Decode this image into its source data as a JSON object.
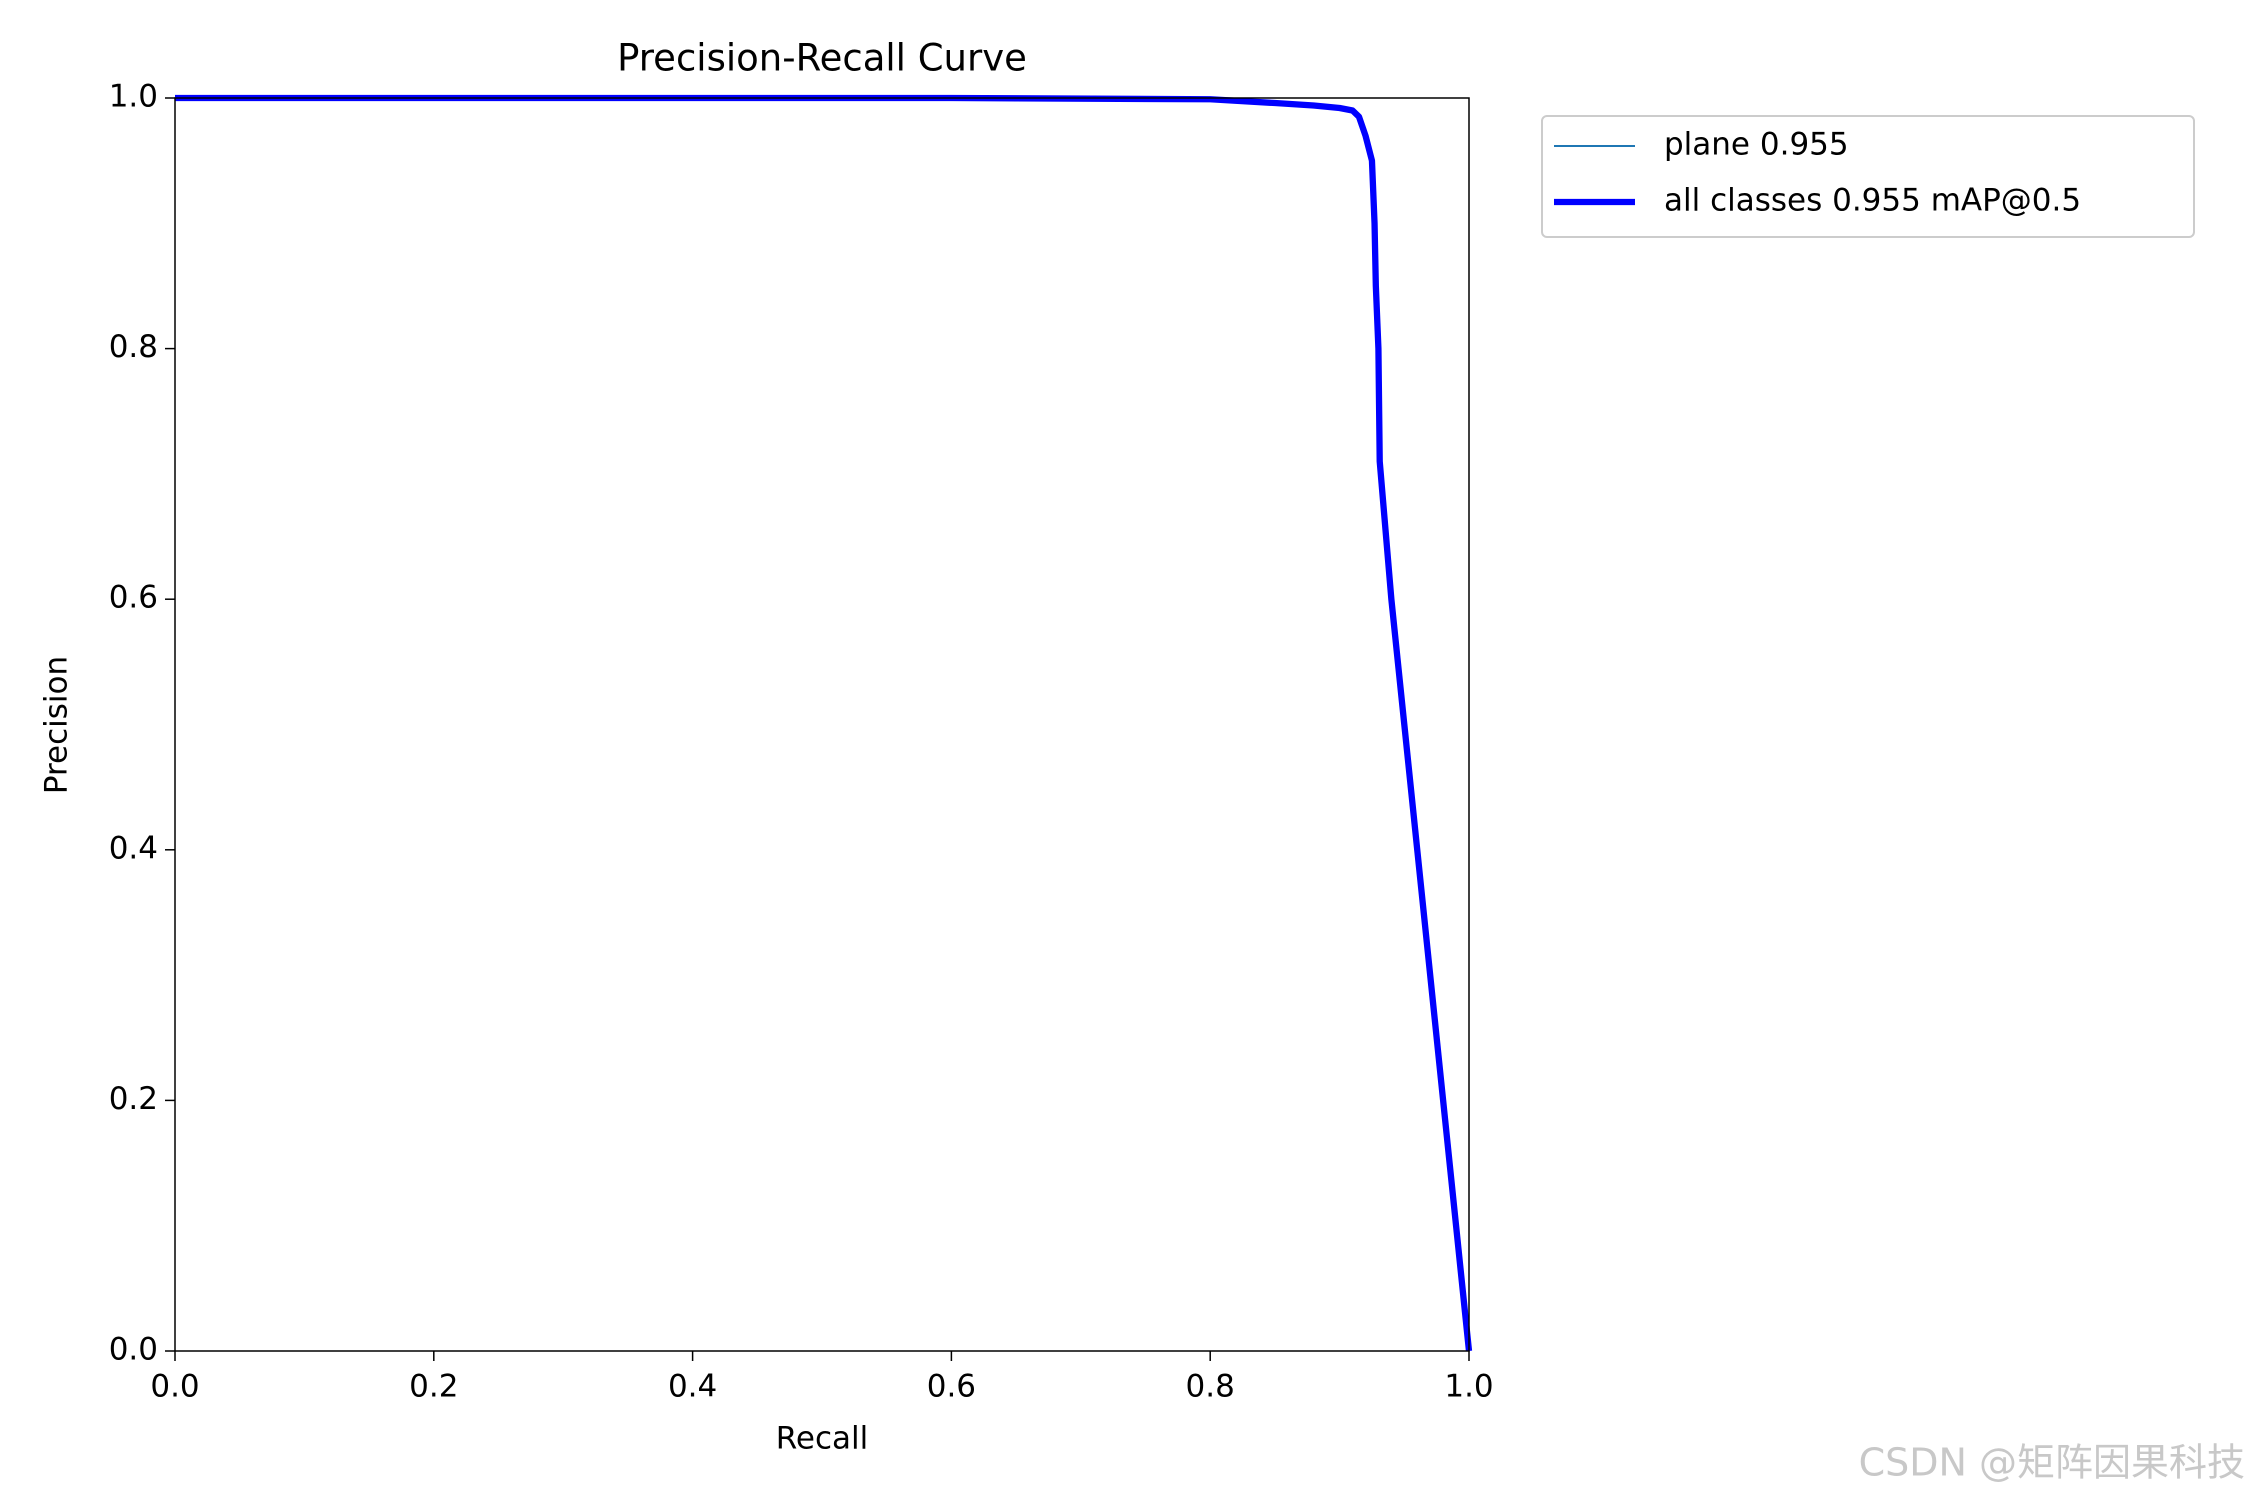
{
  "chart_data": {
    "type": "line",
    "title": "Precision-Recall Curve",
    "x_label": "Recall",
    "y_label": "Precision",
    "x": [
      0,
      0.6,
      0.8,
      0.85,
      0.88,
      0.9,
      0.91,
      0.915,
      0.92,
      0.925,
      0.927,
      0.928,
      0.93,
      0.931,
      0.94,
      0.95,
      0.96,
      0.97,
      0.98,
      0.99,
      0.997,
      1.0
    ],
    "series": [
      {
        "name": "plane 0.955",
        "color": "#1f77b4",
        "width": 1,
        "values": [
          1,
          1,
          0.999,
          0.996,
          0.994,
          0.992,
          0.99,
          0.985,
          0.97,
          0.95,
          0.9,
          0.85,
          0.8,
          0.71,
          0.6,
          0.5,
          0.4,
          0.3,
          0.2,
          0.1,
          0.03,
          0.0
        ]
      },
      {
        "name": "all classes 0.955 mAP@0.5",
        "color": "#0000ff",
        "width": 3,
        "values": [
          1,
          1,
          0.999,
          0.996,
          0.994,
          0.992,
          0.99,
          0.985,
          0.97,
          0.95,
          0.9,
          0.85,
          0.8,
          0.71,
          0.6,
          0.5,
          0.4,
          0.3,
          0.2,
          0.1,
          0.03,
          0.0
        ]
      }
    ],
    "xlim": [
      0,
      1
    ],
    "ylim": [
      0,
      1
    ],
    "xticks": [
      {
        "value": 0,
        "label": "0.0"
      },
      0.2,
      0.4,
      0.6,
      0.8,
      {
        "value": 1,
        "label": "1.0"
      }
    ],
    "yticks": [
      {
        "value": 0,
        "label": "0.0"
      },
      0.2,
      0.4,
      0.6,
      0.8,
      {
        "value": 1,
        "label": "1.0"
      }
    ],
    "grid": false,
    "legend": "outside-upper-right"
  },
  "watermark": "CSDN @矩阵因果科技"
}
